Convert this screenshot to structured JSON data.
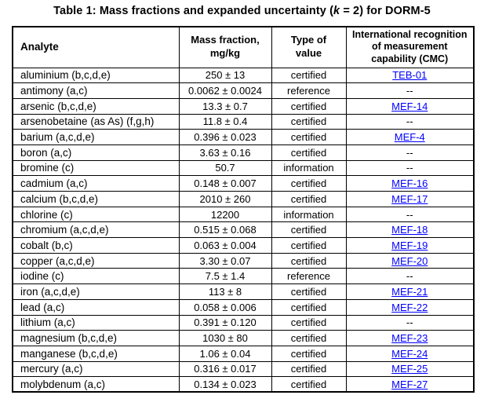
{
  "title": {
    "prefix": "Table 1: Mass fractions and expanded uncertainty (",
    "k": "k",
    "suffix": " = 2) for DORM-5"
  },
  "colors": {
    "link_blue": "#0000ff",
    "border": "#000000",
    "text": "#000000",
    "background": "#ffffff"
  },
  "table": {
    "headers": {
      "analyte": "Analyte",
      "mass_fraction": "Mass fraction,\nmg/kg",
      "type_of_value": "Type of\nvalue",
      "cmc": "International recognition\nof measurement\ncapability (CMC)"
    },
    "rows": [
      {
        "analyte": "aluminium (b,c,d,e)",
        "mass_fraction": "250 ± 13",
        "type_of_value": "certified",
        "cmc": "TEB-01",
        "cmc_is_link": true
      },
      {
        "analyte": "antimony (a,c)",
        "mass_fraction": "0.0062 ± 0.0024",
        "type_of_value": "reference",
        "cmc": "--",
        "cmc_is_link": false
      },
      {
        "analyte": "arsenic (b,c,d,e)",
        "mass_fraction": "13.3 ± 0.7",
        "type_of_value": "certified",
        "cmc": "MEF-14",
        "cmc_is_link": true
      },
      {
        "analyte": "arsenobetaine (as As) (f,g,h)",
        "mass_fraction": "11.8 ± 0.4",
        "type_of_value": "certified",
        "cmc": "--",
        "cmc_is_link": false
      },
      {
        "analyte": "barium (a,c,d,e)",
        "mass_fraction": "0.396 ± 0.023",
        "type_of_value": "certified",
        "cmc": "MEF-4",
        "cmc_is_link": true
      },
      {
        "analyte": "boron (a,c)",
        "mass_fraction": "3.63 ± 0.16",
        "type_of_value": "certified",
        "cmc": "--",
        "cmc_is_link": false
      },
      {
        "analyte": "bromine (c)",
        "mass_fraction": "50.7",
        "type_of_value": "information",
        "cmc": "--",
        "cmc_is_link": false
      },
      {
        "analyte": "cadmium (a,c)",
        "mass_fraction": "0.148 ± 0.007",
        "type_of_value": "certified",
        "cmc": "MEF-16",
        "cmc_is_link": true
      },
      {
        "analyte": "calcium (b,c,d,e)",
        "mass_fraction": "2010 ± 260",
        "type_of_value": "certified",
        "cmc": "MEF-17",
        "cmc_is_link": true
      },
      {
        "analyte": "chlorine (c)",
        "mass_fraction": "12200",
        "type_of_value": "information",
        "cmc": "--",
        "cmc_is_link": false
      },
      {
        "analyte": "chromium (a,c,d,e)",
        "mass_fraction": "0.515 ± 0.068",
        "type_of_value": "certified",
        "cmc": "MEF-18",
        "cmc_is_link": true
      },
      {
        "analyte": "cobalt (b,c)",
        "mass_fraction": "0.063 ± 0.004",
        "type_of_value": "certified",
        "cmc": "MEF-19",
        "cmc_is_link": true
      },
      {
        "analyte": "copper (a,c,d,e)",
        "mass_fraction": "3.30 ± 0.07",
        "type_of_value": "certified",
        "cmc": "MEF-20",
        "cmc_is_link": true
      },
      {
        "analyte": "iodine (c)",
        "mass_fraction": "7.5 ± 1.4",
        "type_of_value": "reference",
        "cmc": "--",
        "cmc_is_link": false
      },
      {
        "analyte": "iron (a,c,d,e)",
        "mass_fraction": "113 ± 8",
        "type_of_value": "certified",
        "cmc": "MEF-21",
        "cmc_is_link": true
      },
      {
        "analyte": "lead (a,c)",
        "mass_fraction": "0.058 ± 0.006",
        "type_of_value": "certified",
        "cmc": "MEF-22",
        "cmc_is_link": true
      },
      {
        "analyte": "lithium (a,c)",
        "mass_fraction": "0.391 ± 0.120",
        "type_of_value": "certified",
        "cmc": "--",
        "cmc_is_link": false
      },
      {
        "analyte": "magnesium (b,c,d,e)",
        "mass_fraction": "1030 ± 80",
        "type_of_value": "certified",
        "cmc": "MEF-23",
        "cmc_is_link": true
      },
      {
        "analyte": "manganese (b,c,d,e)",
        "mass_fraction": "1.06 ± 0.04",
        "type_of_value": "certified",
        "cmc": "MEF-24",
        "cmc_is_link": true
      },
      {
        "analyte": "mercury (a,c)",
        "mass_fraction": "0.316 ± 0.017",
        "type_of_value": "certified",
        "cmc": "MEF-25",
        "cmc_is_link": true
      },
      {
        "analyte": "molybdenum (a,c)",
        "mass_fraction": "0.134 ± 0.023",
        "type_of_value": "certified",
        "cmc": "MEF-27",
        "cmc_is_link": true
      }
    ]
  }
}
